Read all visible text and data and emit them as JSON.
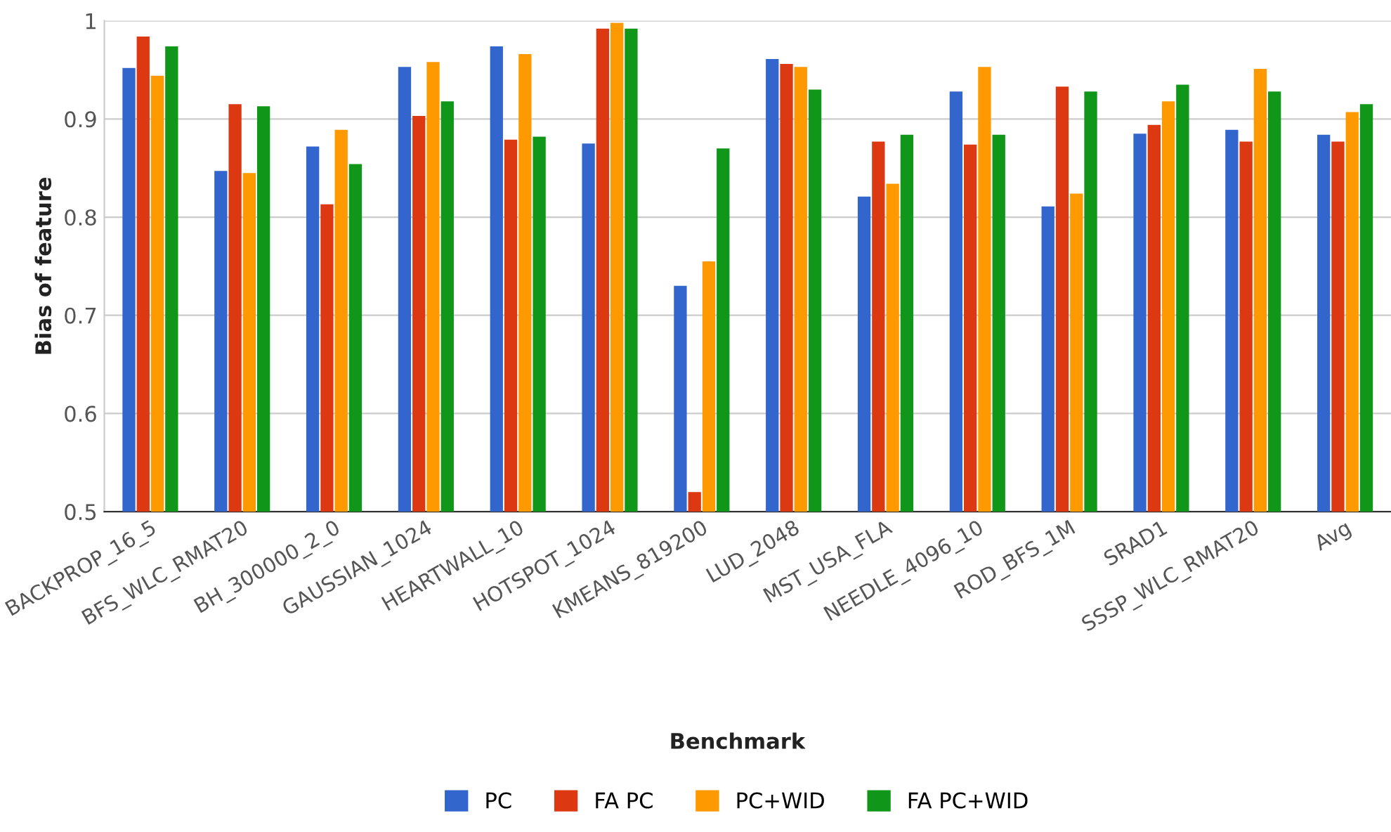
{
  "chart_data": {
    "type": "bar",
    "xlabel": "Benchmark",
    "ylabel": "Bias of feature",
    "categories": [
      "BACKPROP_16_5",
      "BFS_WLC_RMAT20",
      "BH_300000_2_0",
      "GAUSSIAN_1024",
      "HEARTWALL_10",
      "HOTSPOT_1024",
      "KMEANS_819200",
      "LUD_2048",
      "MST_USA_FLA",
      "NEEDLE_4096_10",
      "ROD_BFS_1M",
      "SRAD1",
      "SSSP_WLC_RMAT20",
      "Avg"
    ],
    "series": [
      {
        "name": "PC",
        "color": "#3366cc",
        "values": [
          0.952,
          0.847,
          0.872,
          0.953,
          0.974,
          0.875,
          0.73,
          0.961,
          0.821,
          0.928,
          0.811,
          0.885,
          0.889,
          0.884
        ]
      },
      {
        "name": "FA PC",
        "color": "#dc3912",
        "values": [
          0.984,
          0.915,
          0.813,
          0.903,
          0.879,
          0.992,
          0.52,
          0.956,
          0.877,
          0.874,
          0.933,
          0.894,
          0.877,
          0.877
        ]
      },
      {
        "name": "PC+WID",
        "color": "#ff9900",
        "values": [
          0.944,
          0.845,
          0.889,
          0.958,
          0.966,
          0.998,
          0.755,
          0.953,
          0.834,
          0.953,
          0.824,
          0.918,
          0.951,
          0.907
        ]
      },
      {
        "name": "FA PC+WID",
        "color": "#109618",
        "values": [
          0.974,
          0.913,
          0.854,
          0.918,
          0.882,
          0.992,
          0.87,
          0.93,
          0.884,
          0.884,
          0.928,
          0.935,
          0.928,
          0.915
        ]
      }
    ],
    "ylim": [
      0.5,
      1.0
    ],
    "yticks": [
      0.5,
      0.6,
      0.7,
      0.8,
      0.9,
      1
    ],
    "grid": "y",
    "legend": "bottom"
  }
}
